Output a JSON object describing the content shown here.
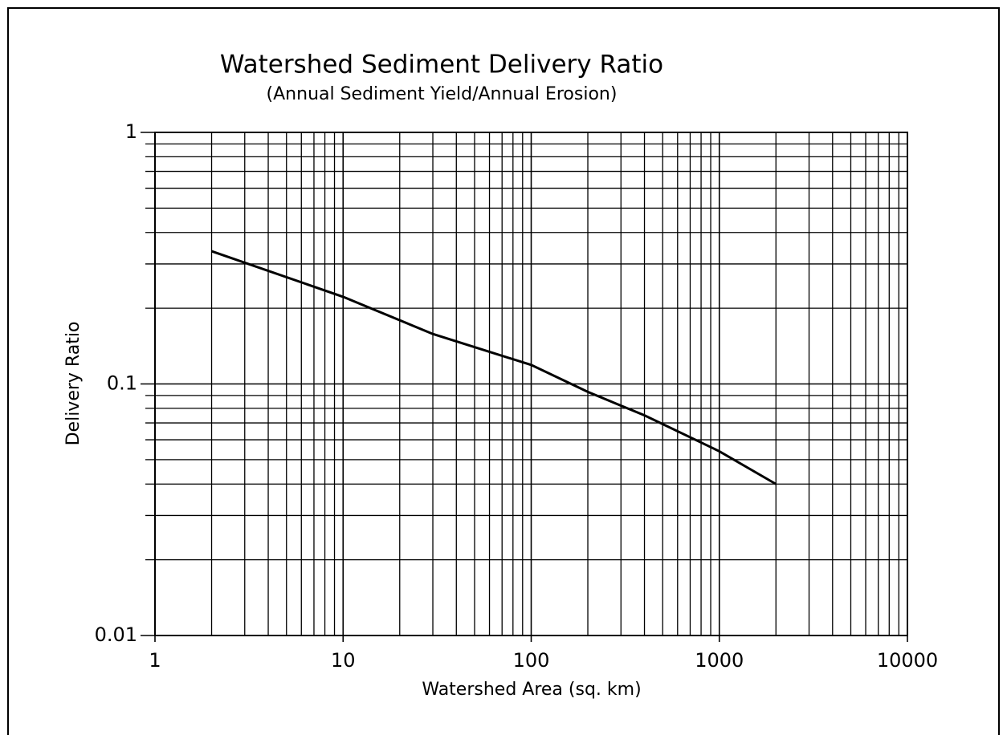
{
  "chart_data": {
    "type": "line",
    "title": "Watershed Sediment Delivery Ratio",
    "subtitle": "(Annual Sediment Yield/Annual Erosion)",
    "x_label": "Watershed Area (sq. km)",
    "y_label": "Delivery Ratio",
    "x": [
      2,
      10,
      30,
      100,
      200,
      400,
      1000,
      2000
    ],
    "series": [
      {
        "name": "Delivery Ratio",
        "color": "#000000",
        "values": [
          0.337,
          0.222,
          0.158,
          0.119,
          0.093,
          0.075,
          0.054,
          0.04
        ]
      }
    ],
    "xlim": [
      1,
      10000
    ],
    "ylim": [
      0.01,
      1
    ],
    "xticks": [
      1,
      10,
      100,
      1000,
      10000
    ],
    "yticks": [
      0.01,
      0.1,
      1
    ],
    "xlog": true,
    "ylog": true,
    "grid": true,
    "minor_grid": true
  }
}
